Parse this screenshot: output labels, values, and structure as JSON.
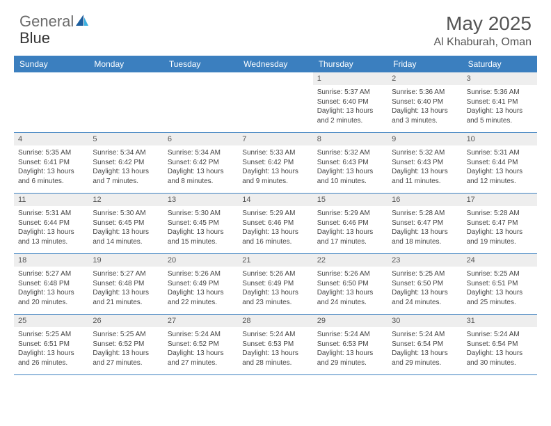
{
  "logo": {
    "text1": "General",
    "text2": "Blue"
  },
  "title": "May 2025",
  "location": "Al Khaburah, Oman",
  "colors": {
    "header_bg": "#3b7fbf",
    "header_text": "#ffffff",
    "daynum_bg": "#eeeeee",
    "border": "#3b7fbf",
    "logo_gray": "#6b6b6b",
    "logo_blue": "#3bb0e0"
  },
  "day_names": [
    "Sunday",
    "Monday",
    "Tuesday",
    "Wednesday",
    "Thursday",
    "Friday",
    "Saturday"
  ],
  "weeks": [
    [
      null,
      null,
      null,
      null,
      {
        "d": "1",
        "sr": "5:37 AM",
        "ss": "6:40 PM",
        "dl": "13 hours and 2 minutes."
      },
      {
        "d": "2",
        "sr": "5:36 AM",
        "ss": "6:40 PM",
        "dl": "13 hours and 3 minutes."
      },
      {
        "d": "3",
        "sr": "5:36 AM",
        "ss": "6:41 PM",
        "dl": "13 hours and 5 minutes."
      }
    ],
    [
      {
        "d": "4",
        "sr": "5:35 AM",
        "ss": "6:41 PM",
        "dl": "13 hours and 6 minutes."
      },
      {
        "d": "5",
        "sr": "5:34 AM",
        "ss": "6:42 PM",
        "dl": "13 hours and 7 minutes."
      },
      {
        "d": "6",
        "sr": "5:34 AM",
        "ss": "6:42 PM",
        "dl": "13 hours and 8 minutes."
      },
      {
        "d": "7",
        "sr": "5:33 AM",
        "ss": "6:42 PM",
        "dl": "13 hours and 9 minutes."
      },
      {
        "d": "8",
        "sr": "5:32 AM",
        "ss": "6:43 PM",
        "dl": "13 hours and 10 minutes."
      },
      {
        "d": "9",
        "sr": "5:32 AM",
        "ss": "6:43 PM",
        "dl": "13 hours and 11 minutes."
      },
      {
        "d": "10",
        "sr": "5:31 AM",
        "ss": "6:44 PM",
        "dl": "13 hours and 12 minutes."
      }
    ],
    [
      {
        "d": "11",
        "sr": "5:31 AM",
        "ss": "6:44 PM",
        "dl": "13 hours and 13 minutes."
      },
      {
        "d": "12",
        "sr": "5:30 AM",
        "ss": "6:45 PM",
        "dl": "13 hours and 14 minutes."
      },
      {
        "d": "13",
        "sr": "5:30 AM",
        "ss": "6:45 PM",
        "dl": "13 hours and 15 minutes."
      },
      {
        "d": "14",
        "sr": "5:29 AM",
        "ss": "6:46 PM",
        "dl": "13 hours and 16 minutes."
      },
      {
        "d": "15",
        "sr": "5:29 AM",
        "ss": "6:46 PM",
        "dl": "13 hours and 17 minutes."
      },
      {
        "d": "16",
        "sr": "5:28 AM",
        "ss": "6:47 PM",
        "dl": "13 hours and 18 minutes."
      },
      {
        "d": "17",
        "sr": "5:28 AM",
        "ss": "6:47 PM",
        "dl": "13 hours and 19 minutes."
      }
    ],
    [
      {
        "d": "18",
        "sr": "5:27 AM",
        "ss": "6:48 PM",
        "dl": "13 hours and 20 minutes."
      },
      {
        "d": "19",
        "sr": "5:27 AM",
        "ss": "6:48 PM",
        "dl": "13 hours and 21 minutes."
      },
      {
        "d": "20",
        "sr": "5:26 AM",
        "ss": "6:49 PM",
        "dl": "13 hours and 22 minutes."
      },
      {
        "d": "21",
        "sr": "5:26 AM",
        "ss": "6:49 PM",
        "dl": "13 hours and 23 minutes."
      },
      {
        "d": "22",
        "sr": "5:26 AM",
        "ss": "6:50 PM",
        "dl": "13 hours and 24 minutes."
      },
      {
        "d": "23",
        "sr": "5:25 AM",
        "ss": "6:50 PM",
        "dl": "13 hours and 24 minutes."
      },
      {
        "d": "24",
        "sr": "5:25 AM",
        "ss": "6:51 PM",
        "dl": "13 hours and 25 minutes."
      }
    ],
    [
      {
        "d": "25",
        "sr": "5:25 AM",
        "ss": "6:51 PM",
        "dl": "13 hours and 26 minutes."
      },
      {
        "d": "26",
        "sr": "5:25 AM",
        "ss": "6:52 PM",
        "dl": "13 hours and 27 minutes."
      },
      {
        "d": "27",
        "sr": "5:24 AM",
        "ss": "6:52 PM",
        "dl": "13 hours and 27 minutes."
      },
      {
        "d": "28",
        "sr": "5:24 AM",
        "ss": "6:53 PM",
        "dl": "13 hours and 28 minutes."
      },
      {
        "d": "29",
        "sr": "5:24 AM",
        "ss": "6:53 PM",
        "dl": "13 hours and 29 minutes."
      },
      {
        "d": "30",
        "sr": "5:24 AM",
        "ss": "6:54 PM",
        "dl": "13 hours and 29 minutes."
      },
      {
        "d": "31",
        "sr": "5:24 AM",
        "ss": "6:54 PM",
        "dl": "13 hours and 30 minutes."
      }
    ]
  ],
  "labels": {
    "sunrise": "Sunrise: ",
    "sunset": "Sunset: ",
    "daylight": "Daylight: "
  }
}
